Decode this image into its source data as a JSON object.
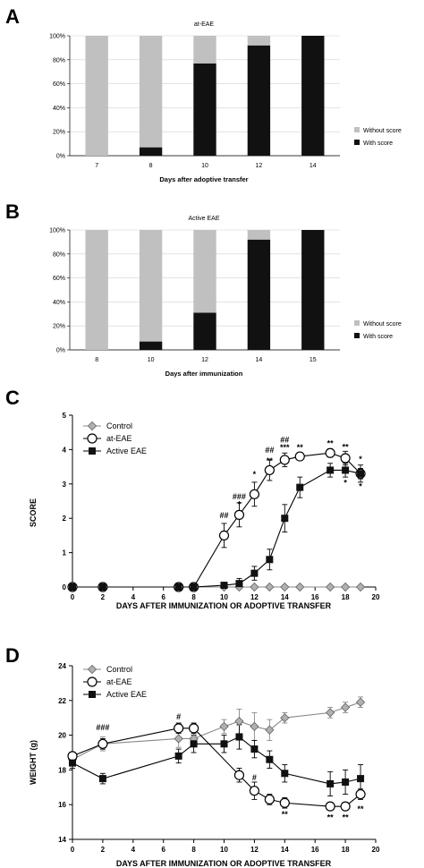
{
  "panels": {
    "A": "A",
    "B": "B",
    "C": "C",
    "D": "D"
  },
  "chart_data": [
    {
      "panel": "A",
      "type": "bar",
      "stacked": true,
      "title": "at-EAE",
      "xlabel": "Days after adoptive transfer",
      "ylabel": "",
      "y_ticks": [
        "0%",
        "20%",
        "40%",
        "60%",
        "80%",
        "100%"
      ],
      "ylim": [
        0,
        100
      ],
      "categories": [
        "7",
        "8",
        "10",
        "12",
        "14"
      ],
      "series": [
        {
          "name": "With score",
          "color": "#111111",
          "values": [
            0,
            7,
            77,
            92,
            100
          ]
        },
        {
          "name": "Without score",
          "color": "#c0c0c0",
          "values": [
            100,
            93,
            23,
            8,
            0
          ]
        }
      ],
      "legend": [
        "Without score",
        "With score"
      ],
      "legend_position": "right"
    },
    {
      "panel": "B",
      "type": "bar",
      "stacked": true,
      "title": "Active EAE",
      "xlabel": "Days after immunization",
      "ylabel": "",
      "y_ticks": [
        "0%",
        "20%",
        "40%",
        "60%",
        "80%",
        "100%"
      ],
      "ylim": [
        0,
        100
      ],
      "categories": [
        "8",
        "10",
        "12",
        "14",
        "15"
      ],
      "series": [
        {
          "name": "With score",
          "color": "#111111",
          "values": [
            0,
            7,
            31,
            92,
            100
          ]
        },
        {
          "name": "Without score",
          "color": "#c0c0c0",
          "values": [
            100,
            93,
            69,
            8,
            0
          ]
        }
      ],
      "legend": [
        "Without score",
        "With score"
      ],
      "legend_position": "right"
    },
    {
      "panel": "C",
      "type": "line",
      "xlabel": "DAYS AFTER IMMUNIZATION OR ADOPTIVE TRANSFER",
      "ylabel": "SCORE",
      "xlim": [
        0,
        20
      ],
      "ylim": [
        0,
        5
      ],
      "x_ticks": [
        "0",
        "2",
        "4",
        "6",
        "8",
        "10",
        "12",
        "14",
        "16",
        "18",
        "20"
      ],
      "y_ticks": [
        "0",
        "1",
        "2",
        "3",
        "4",
        "5"
      ],
      "legend_position": "top-left",
      "series": [
        {
          "name": "Control",
          "marker": "diamond",
          "x": [
            0,
            2,
            7,
            8,
            10,
            11,
            12,
            13,
            14,
            15,
            17,
            18,
            19
          ],
          "y": [
            0,
            0,
            0,
            0,
            0,
            0,
            0,
            0,
            0,
            0,
            0,
            0,
            0
          ],
          "err": [
            0,
            0,
            0,
            0,
            0,
            0,
            0,
            0,
            0,
            0,
            0,
            0,
            0
          ]
        },
        {
          "name": "at-EAE",
          "marker": "circle",
          "x": [
            0,
            2,
            7,
            8,
            10,
            11,
            12,
            13,
            14,
            15,
            17,
            18,
            19
          ],
          "y": [
            0,
            0,
            0,
            0,
            1.5,
            2.1,
            2.7,
            3.4,
            3.7,
            3.8,
            3.9,
            3.75,
            3.3
          ],
          "err": [
            0,
            0,
            0,
            0,
            0.35,
            0.35,
            0.35,
            0.3,
            0.2,
            0.1,
            0.12,
            0.2,
            0.25
          ]
        },
        {
          "name": "Active EAE",
          "marker": "square",
          "x": [
            0,
            2,
            7,
            8,
            10,
            11,
            12,
            13,
            14,
            15,
            17,
            18,
            19
          ],
          "y": [
            0,
            0,
            0,
            0,
            0.05,
            0.1,
            0.4,
            0.8,
            2.0,
            2.9,
            3.4,
            3.4,
            3.3
          ],
          "err": [
            0,
            0,
            0,
            0,
            0.05,
            0.15,
            0.2,
            0.3,
            0.4,
            0.3,
            0.2,
            0.2,
            0.15
          ]
        }
      ],
      "annotations": [
        {
          "text": "##",
          "x": 10,
          "y": 2.0
        },
        {
          "text": "###",
          "x": 11,
          "y": 2.55
        },
        {
          "text": "*",
          "x": 11,
          "y": 2.33
        },
        {
          "text": "*",
          "x": 12,
          "y": 3.2
        },
        {
          "text": "##",
          "x": 13,
          "y": 3.9
        },
        {
          "text": "**",
          "x": 13,
          "y": 3.6
        },
        {
          "text": "##",
          "x": 14,
          "y": 4.2
        },
        {
          "text": "***",
          "x": 14,
          "y": 3.98
        },
        {
          "text": "**",
          "x": 15,
          "y": 3.98
        },
        {
          "text": "**",
          "x": 17,
          "y": 4.1
        },
        {
          "text": "**",
          "x": 18,
          "y": 4.0
        },
        {
          "text": "*",
          "x": 18,
          "y": 2.95
        },
        {
          "text": "*",
          "x": 19,
          "y": 3.65
        },
        {
          "text": "*",
          "x": 19,
          "y": 2.85
        }
      ]
    },
    {
      "panel": "D",
      "type": "line",
      "xlabel": "DAYS AFTER IMMUNIZATION OR ADOPTIVE TRANSFER",
      "ylabel": "WEIGHT (g)",
      "xlim": [
        0,
        20
      ],
      "ylim": [
        14,
        24
      ],
      "x_ticks": [
        "0",
        "2",
        "4",
        "6",
        "8",
        "10",
        "12",
        "14",
        "16",
        "18",
        "20"
      ],
      "y_ticks": [
        "14",
        "16",
        "18",
        "20",
        "22",
        "24"
      ],
      "legend_position": "top-left",
      "series": [
        {
          "name": "Control",
          "marker": "diamond",
          "x": [
            0,
            2,
            7,
            8,
            10,
            11,
            12,
            13,
            14,
            17,
            18,
            19
          ],
          "y": [
            18.6,
            19.5,
            19.8,
            19.8,
            20.5,
            20.8,
            20.5,
            20.3,
            21.0,
            21.3,
            21.6,
            21.9
          ],
          "err": [
            0.2,
            0.4,
            0.5,
            0.4,
            0.4,
            0.7,
            0.8,
            0.6,
            0.3,
            0.3,
            0.3,
            0.3
          ]
        },
        {
          "name": "at-EAE",
          "marker": "circle",
          "x": [
            0,
            2,
            7,
            8,
            11,
            12,
            13,
            14,
            17,
            18,
            19
          ],
          "y": [
            18.8,
            19.5,
            20.4,
            20.4,
            17.7,
            16.8,
            16.3,
            16.1,
            15.9,
            15.9,
            16.6
          ],
          "err": [
            0.2,
            0.3,
            0.3,
            0.3,
            0.4,
            0.5,
            0.3,
            0.3,
            0.2,
            0.2,
            0.3
          ]
        },
        {
          "name": "Active EAE",
          "marker": "square",
          "x": [
            0,
            2,
            7,
            8,
            10,
            11,
            12,
            13,
            14,
            17,
            18,
            19
          ],
          "y": [
            18.4,
            17.5,
            18.8,
            19.5,
            19.5,
            19.9,
            19.2,
            18.6,
            17.8,
            17.2,
            17.3,
            17.5
          ],
          "err": [
            0.3,
            0.3,
            0.4,
            0.5,
            0.5,
            0.7,
            0.5,
            0.5,
            0.5,
            0.7,
            0.7,
            0.8
          ]
        }
      ],
      "annotations": [
        {
          "text": "###",
          "x": 2,
          "y": 20.3
        },
        {
          "text": "#",
          "x": 7,
          "y": 20.9
        },
        {
          "text": "#",
          "x": 12,
          "y": 17.4
        },
        {
          "text": "**",
          "x": 14,
          "y": 15.3
        },
        {
          "text": "**",
          "x": 17,
          "y": 15.1
        },
        {
          "text": "**",
          "x": 18,
          "y": 15.1
        },
        {
          "text": "**",
          "x": 19,
          "y": 15.6
        }
      ]
    }
  ]
}
